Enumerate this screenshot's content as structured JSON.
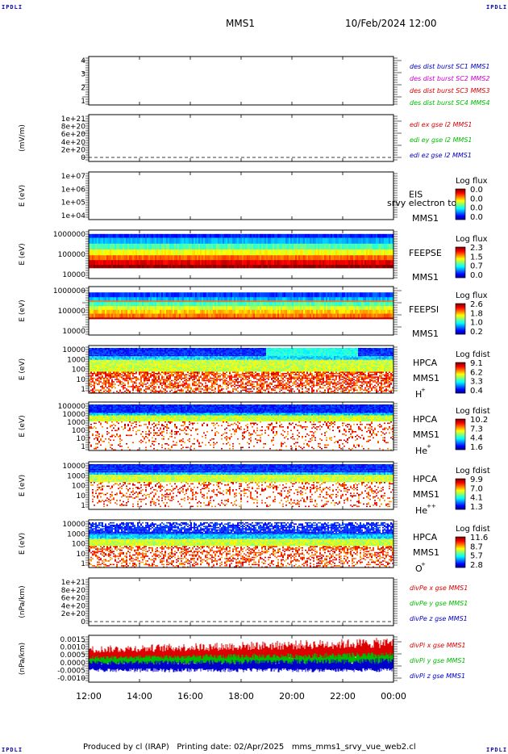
{
  "corner_logo": "IPDLI",
  "header": {
    "spacecraft": "MMS1",
    "datetime": "10/Feb/2024 12:00"
  },
  "footer": "Produced by cl (IRAP)   Printing date: 02/Apr/2025   mms_mms1_srvy_vue_web2.cl",
  "colors": {
    "blue": "#0000cc",
    "magenta": "#cc00cc",
    "red": "#dd0000",
    "green": "#00bb00"
  },
  "chart_data": [
    {
      "type": "line",
      "name": "des_dist_burst",
      "yticks": [
        "4",
        "3",
        "2",
        "1"
      ],
      "ylim": [
        0.5,
        4.5
      ],
      "legend": [
        {
          "label": "des dist burst SC1 MMS1",
          "color": "#0000cc"
        },
        {
          "label": "des dist burst SC2 MMS2",
          "color": "#cc00cc"
        },
        {
          "label": "des dist burst SC3 MMS3",
          "color": "#dd0000"
        },
        {
          "label": "des dist burst SC4 MMS4",
          "color": "#00bb00"
        }
      ],
      "series": []
    },
    {
      "type": "line",
      "name": "edi_e_gse",
      "ylabel": "(mV/m)",
      "yticks": [
        "1e+21",
        "8e+20",
        "6e+20",
        "4e+20",
        "2e+20",
        "0"
      ],
      "ylim": [
        -1e+20,
        1.05e+21
      ],
      "legend": [
        {
          "label": "edi ex gse l2 MMS1",
          "color": "#dd0000"
        },
        {
          "label": "edi ey gse l2 MMS1",
          "color": "#00bb00"
        },
        {
          "label": "edi ez gse l2 MMS1",
          "color": "#0000cc"
        }
      ],
      "series": []
    },
    {
      "type": "heatmap",
      "name": "eis",
      "ylabel": "E (eV)",
      "yticks": [
        "1e+07",
        "1e+06",
        "1e+05",
        "1e+04"
      ],
      "ylog": [
        4,
        7
      ],
      "side_labels": [
        "EIS",
        "MMS1"
      ],
      "overlay_label": "srvy electron to",
      "colorbar": {
        "title": "Log flux",
        "ticks": [
          "0.0",
          "0.0",
          "0.0",
          "0.0"
        ]
      },
      "data_note": ""
    },
    {
      "type": "heatmap",
      "name": "feeps_e",
      "ylabel": "E (eV)",
      "yticks": [
        "1000000",
        "100000",
        "10000"
      ],
      "ylog": [
        4,
        6
      ],
      "side_labels": [
        "FEEPSE",
        "MMS1"
      ],
      "colorbar": {
        "title": "Log flux",
        "ticks": [
          "2.3",
          "1.5",
          "0.7",
          "0.0"
        ]
      },
      "value_range": [
        0.0,
        2.3
      ]
    },
    {
      "type": "heatmap",
      "name": "feeps_i",
      "ylabel": "E (eV)",
      "yticks": [
        "1000000",
        "100000",
        "10000"
      ],
      "ylog": [
        4,
        6
      ],
      "side_labels": [
        "FEEPSI",
        "MMS1"
      ],
      "colorbar": {
        "title": "Log flux",
        "ticks": [
          "2.6",
          "1.8",
          "1.0",
          "0.2"
        ]
      },
      "value_range": [
        0.2,
        2.6
      ]
    },
    {
      "type": "heatmap",
      "name": "hpca_h",
      "ylabel": "E (eV)",
      "yticks": [
        "10000",
        "1000",
        "100",
        "10",
        "1"
      ],
      "ylog": [
        0,
        4.5
      ],
      "side_labels": [
        "HPCA",
        "MMS1",
        "H",
        "+"
      ],
      "colorbar": {
        "title": "Log fdist",
        "ticks": [
          "9.1",
          "6.2",
          "3.3",
          "0.4"
        ]
      },
      "value_range": [
        0.4,
        9.1
      ]
    },
    {
      "type": "heatmap",
      "name": "hpca_he",
      "ylabel": "E (eV)",
      "yticks": [
        "100000",
        "10000",
        "1000",
        "100",
        "10",
        "1"
      ],
      "ylog": [
        0,
        5
      ],
      "side_labels": [
        "HPCA",
        "MMS1",
        "He",
        "+"
      ],
      "colorbar": {
        "title": "Log fdist",
        "ticks": [
          "10.2",
          "7.3",
          "4.4",
          "1.6"
        ]
      },
      "value_range": [
        1.6,
        10.2
      ]
    },
    {
      "type": "heatmap",
      "name": "hpca_hepp",
      "ylabel": "E (eV)",
      "yticks": [
        "10000",
        "1000",
        "100",
        "10",
        "1"
      ],
      "ylog": [
        0,
        4.5
      ],
      "side_labels": [
        "HPCA",
        "MMS1",
        "He",
        "++"
      ],
      "colorbar": {
        "title": "Log fdist",
        "ticks": [
          "9.9",
          "7.0",
          "4.1",
          "1.3"
        ]
      },
      "value_range": [
        1.3,
        9.9
      ]
    },
    {
      "type": "heatmap",
      "name": "hpca_o",
      "ylabel": "E (eV)",
      "yticks": [
        "10000",
        "1000",
        "100",
        "10",
        "1"
      ],
      "ylog": [
        0,
        4.5
      ],
      "side_labels": [
        "HPCA",
        "MMS1",
        "O",
        "+"
      ],
      "colorbar": {
        "title": "Log fdist",
        "ticks": [
          "11.6",
          "8.7",
          "5.7",
          "2.8"
        ]
      },
      "value_range": [
        2.8,
        11.6
      ]
    },
    {
      "type": "line",
      "name": "divpe",
      "ylabel": "(nPa/km)",
      "yticks": [
        "1e+21",
        "8e+20",
        "6e+20",
        "4e+20",
        "2e+20",
        "0"
      ],
      "ylim": [
        -1e+20,
        1.05e+21
      ],
      "legend": [
        {
          "label": "divPe x gse MMS1",
          "color": "#dd0000"
        },
        {
          "label": "divPe y gse MMS1",
          "color": "#00bb00"
        },
        {
          "label": "divPe z gse MMS1",
          "color": "#0000cc"
        }
      ],
      "series": []
    },
    {
      "type": "line",
      "name": "divpi",
      "ylabel": "(nPa/km)",
      "yticks": [
        "0.0015",
        "0.0010",
        "0.0005",
        "0.0000",
        "-0.0005",
        "-0.0010"
      ],
      "ylim": [
        -0.0011,
        0.0016
      ],
      "legend": [
        {
          "label": "divPi x gse MMS1",
          "color": "#dd0000"
        },
        {
          "label": "divPi y gse MMS1",
          "color": "#00bb00"
        },
        {
          "label": "divPi z gse MMS1",
          "color": "#0000cc"
        }
      ],
      "series": [
        {
          "name": "divPi x gse MMS1",
          "mean": 0.0004,
          "spread": 0.00045,
          "trend": 0.0002
        },
        {
          "name": "divPi y gse MMS1",
          "mean": 0.0001,
          "spread": 0.00025,
          "trend": 5e-05
        },
        {
          "name": "divPi z gse MMS1",
          "mean": -0.0002,
          "spread": 0.00025,
          "trend": 0.0
        }
      ]
    }
  ],
  "xaxis": {
    "ticks": [
      "12:00",
      "14:00",
      "16:00",
      "18:00",
      "20:00",
      "22:00",
      "00:00"
    ]
  }
}
